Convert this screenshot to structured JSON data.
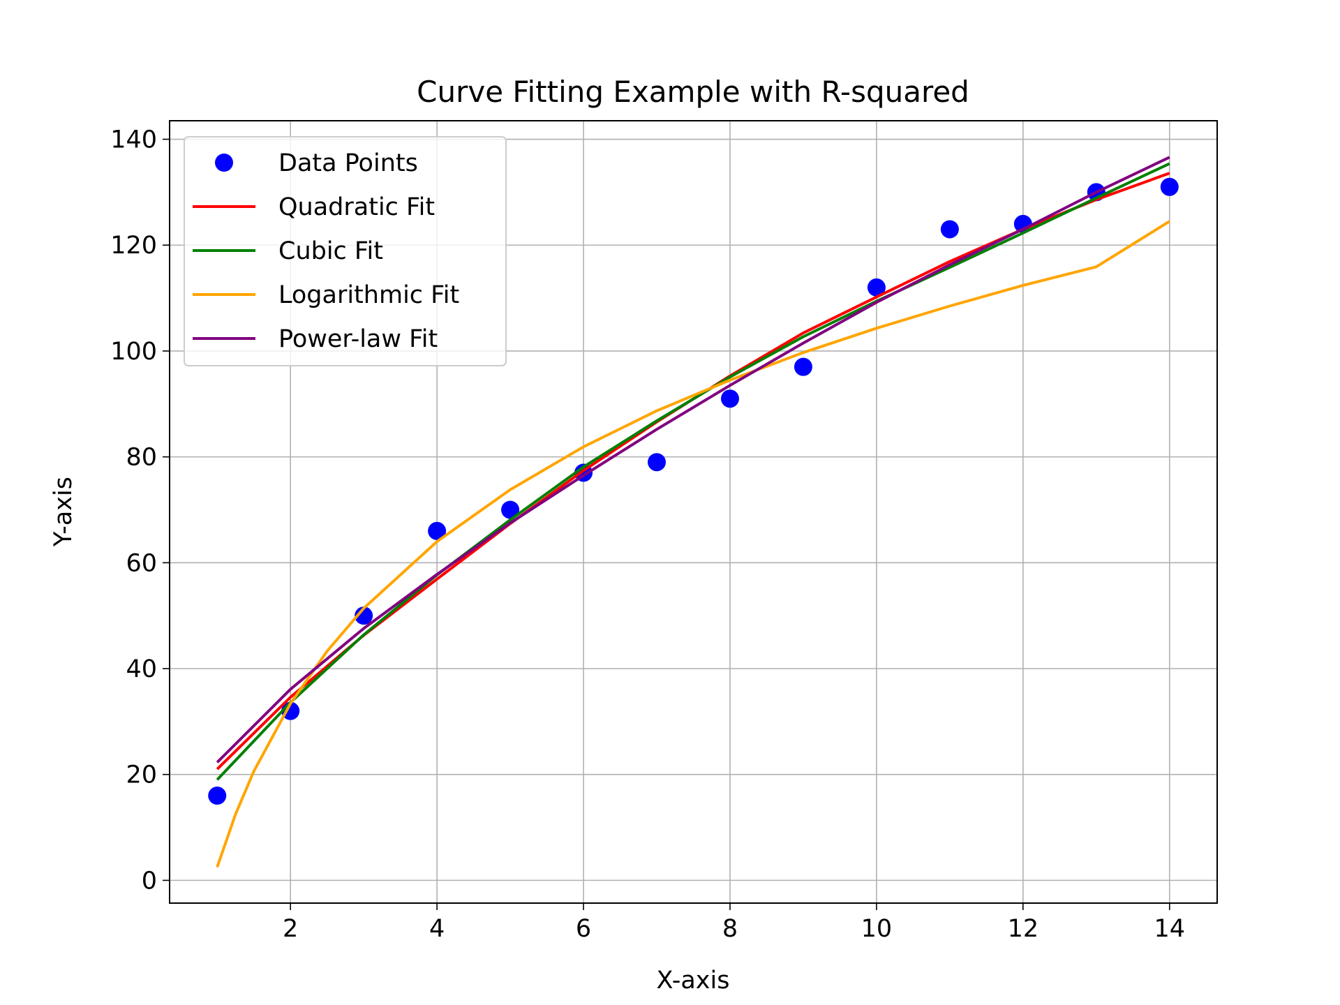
{
  "chart_data": {
    "type": "scatter",
    "title": "Curve Fitting Example with R-squared",
    "xlabel": "X-axis",
    "ylabel": "Y-axis",
    "xlim": [
      0.35,
      14.65
    ],
    "ylim": [
      -4.3,
      143.5
    ],
    "xticks": [
      2,
      4,
      6,
      8,
      10,
      12,
      14
    ],
    "yticks": [
      0,
      20,
      40,
      60,
      80,
      100,
      120,
      140
    ],
    "grid": true,
    "legend_position": "upper-left",
    "points": {
      "name": "Data Points",
      "color": "#0000ff",
      "x": [
        1,
        2,
        3,
        4,
        5,
        6,
        7,
        8,
        9,
        10,
        11,
        12,
        13,
        14
      ],
      "y": [
        16,
        32,
        50,
        66,
        70,
        77,
        79,
        91,
        97,
        112,
        123,
        124,
        130,
        131
      ]
    },
    "fits": [
      {
        "name": "Quadratic Fit",
        "color": "#ff0000",
        "x": [
          1,
          2,
          3,
          4,
          5,
          6,
          7,
          8,
          9,
          10,
          11,
          12,
          13,
          14
        ],
        "y": [
          21,
          34.6,
          46.3,
          56.9,
          67.4,
          77.4,
          86.6,
          95.3,
          103.4,
          110.2,
          116.9,
          123.0,
          128.6,
          133.6
        ]
      },
      {
        "name": "Cubic Fit",
        "color": "#008000",
        "x": [
          1,
          2,
          3,
          4,
          5,
          6,
          7,
          8,
          9,
          10,
          11,
          12,
          13,
          14
        ],
        "y": [
          19,
          33.6,
          46.4,
          57.7,
          68.1,
          78.1,
          86.8,
          95.1,
          102.7,
          109.4,
          115.8,
          122.3,
          128.9,
          135.4
        ]
      },
      {
        "name": "Logarithmic Fit",
        "color": "#ffa500",
        "x": [
          1,
          1.25,
          1.5,
          2,
          2.5,
          3,
          4,
          5,
          6,
          7,
          8,
          9,
          10,
          11,
          12,
          13,
          14
        ],
        "y": [
          2.5,
          12.5,
          20.6,
          33.4,
          43.3,
          51.4,
          64.0,
          73.8,
          81.9,
          88.7,
          94.5,
          99.7,
          104.3,
          108.5,
          112.4,
          115.9,
          124.5
        ]
      },
      {
        "name": "Power-law Fit",
        "color": "#800080",
        "x": [
          1,
          2,
          3,
          4,
          5,
          6,
          7,
          8,
          9,
          10,
          11,
          12,
          13,
          14
        ],
        "y": [
          22.3,
          36.1,
          47.6,
          57.8,
          67.5,
          76.5,
          85.2,
          93.5,
          101.5,
          109.2,
          116.3,
          123.0,
          130.0,
          136.6
        ]
      }
    ]
  }
}
